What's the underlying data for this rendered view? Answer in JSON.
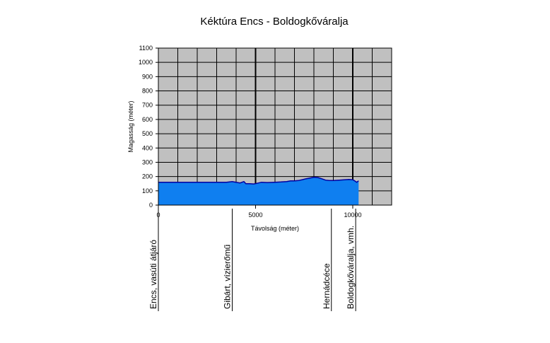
{
  "chart_data": {
    "type": "area",
    "title": "Kéktúra Encs - Boldogkőváralja",
    "xlabel": "Távolság (méter)",
    "ylabel": "Magasság (méter)",
    "xlim": [
      0,
      12000
    ],
    "ylim": [
      0,
      1100
    ],
    "x_ticks": [
      0,
      5000,
      10000
    ],
    "y_ticks": [
      0,
      100,
      200,
      300,
      400,
      500,
      600,
      700,
      800,
      900,
      1000,
      1100
    ],
    "x_grid_step": 1000,
    "grid": true,
    "plot_background": "#c0c0c0",
    "fill_color": "#0f7ff0",
    "line_color": "#0000a0",
    "profile": {
      "x": [
        0,
        500,
        1000,
        1500,
        2000,
        2500,
        3000,
        3500,
        3800,
        4000,
        4200,
        4400,
        4500,
        4700,
        4900,
        5000,
        5300,
        5600,
        6000,
        6300,
        6600,
        6800,
        7000,
        7200,
        7400,
        7600,
        7800,
        8000,
        8200,
        8400,
        8600,
        8800,
        9000,
        9300,
        9600,
        9800,
        10000,
        10100,
        10200,
        10250,
        10300
      ],
      "y": [
        160,
        160,
        160,
        160,
        160,
        160,
        160,
        160,
        165,
        160,
        155,
        165,
        150,
        150,
        148,
        150,
        160,
        158,
        160,
        162,
        165,
        170,
        170,
        172,
        178,
        185,
        190,
        195,
        193,
        185,
        175,
        172,
        172,
        175,
        178,
        180,
        178,
        170,
        160,
        165,
        170
      ]
    },
    "waypoints": [
      {
        "name": "Encs, vasúti átjáró",
        "x": 0
      },
      {
        "name": "Gibárt, vízierőmű",
        "x": 3800
      },
      {
        "name": "Hernádcéce",
        "x": 8900
      },
      {
        "name": "Boldogkőváralja, vmh.",
        "x": 10150
      }
    ]
  }
}
